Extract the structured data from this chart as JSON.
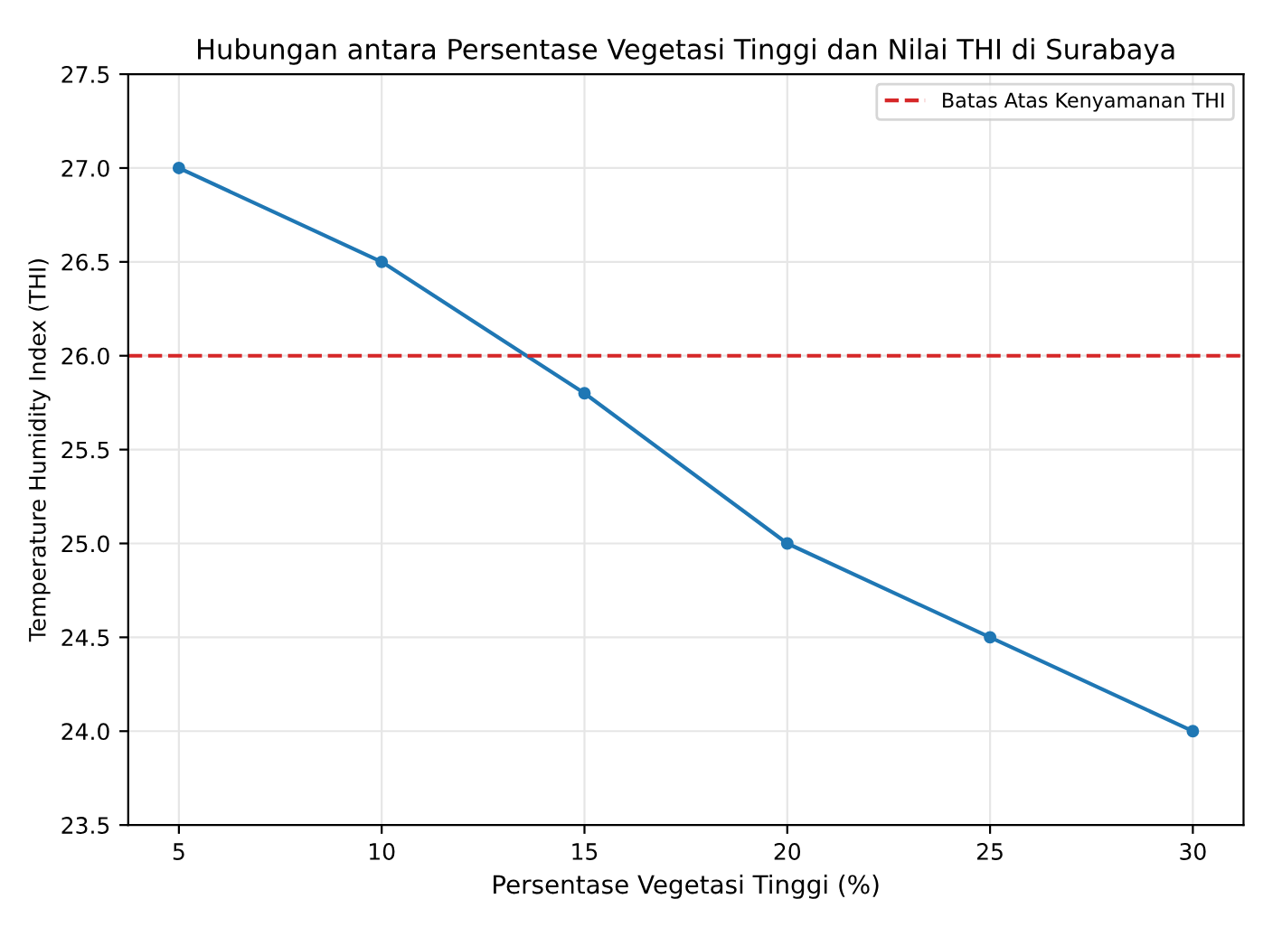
{
  "chart_data": {
    "type": "line",
    "title": "Hubungan antara Persentase Vegetasi Tinggi dan Nilai THI di Surabaya",
    "xlabel": "Persentase Vegetasi Tinggi (%)",
    "ylabel": "Temperature Humidity Index (THI)",
    "x": [
      5,
      10,
      15,
      20,
      25,
      30
    ],
    "series": [
      {
        "color": "#1f77b4",
        "values": [
          27.0,
          26.5,
          25.8,
          25.0,
          24.5,
          24.0
        ]
      }
    ],
    "xlim": [
      3.75,
      31.25
    ],
    "xticks": [
      5,
      10,
      15,
      20,
      25,
      30
    ],
    "ylim": [
      23.5,
      27.5
    ],
    "yticks": [
      23.5,
      {
        "value": 24,
        "label": "24.0"
      },
      24.5,
      {
        "value": 25,
        "label": "25.0"
      },
      25.5,
      {
        "value": 26,
        "label": "26.0"
      },
      26.5,
      {
        "value": 27,
        "label": "27.0"
      },
      27.5
    ],
    "ref_lines": [
      {
        "axis": "y",
        "value": 26.0,
        "label": "Batas Atas Kenyamanan THI",
        "color": "#d62728",
        "line_style": "dashed"
      }
    ],
    "grid": true,
    "legend": "top right",
    "marker": "circle",
    "line_style": "solid"
  }
}
